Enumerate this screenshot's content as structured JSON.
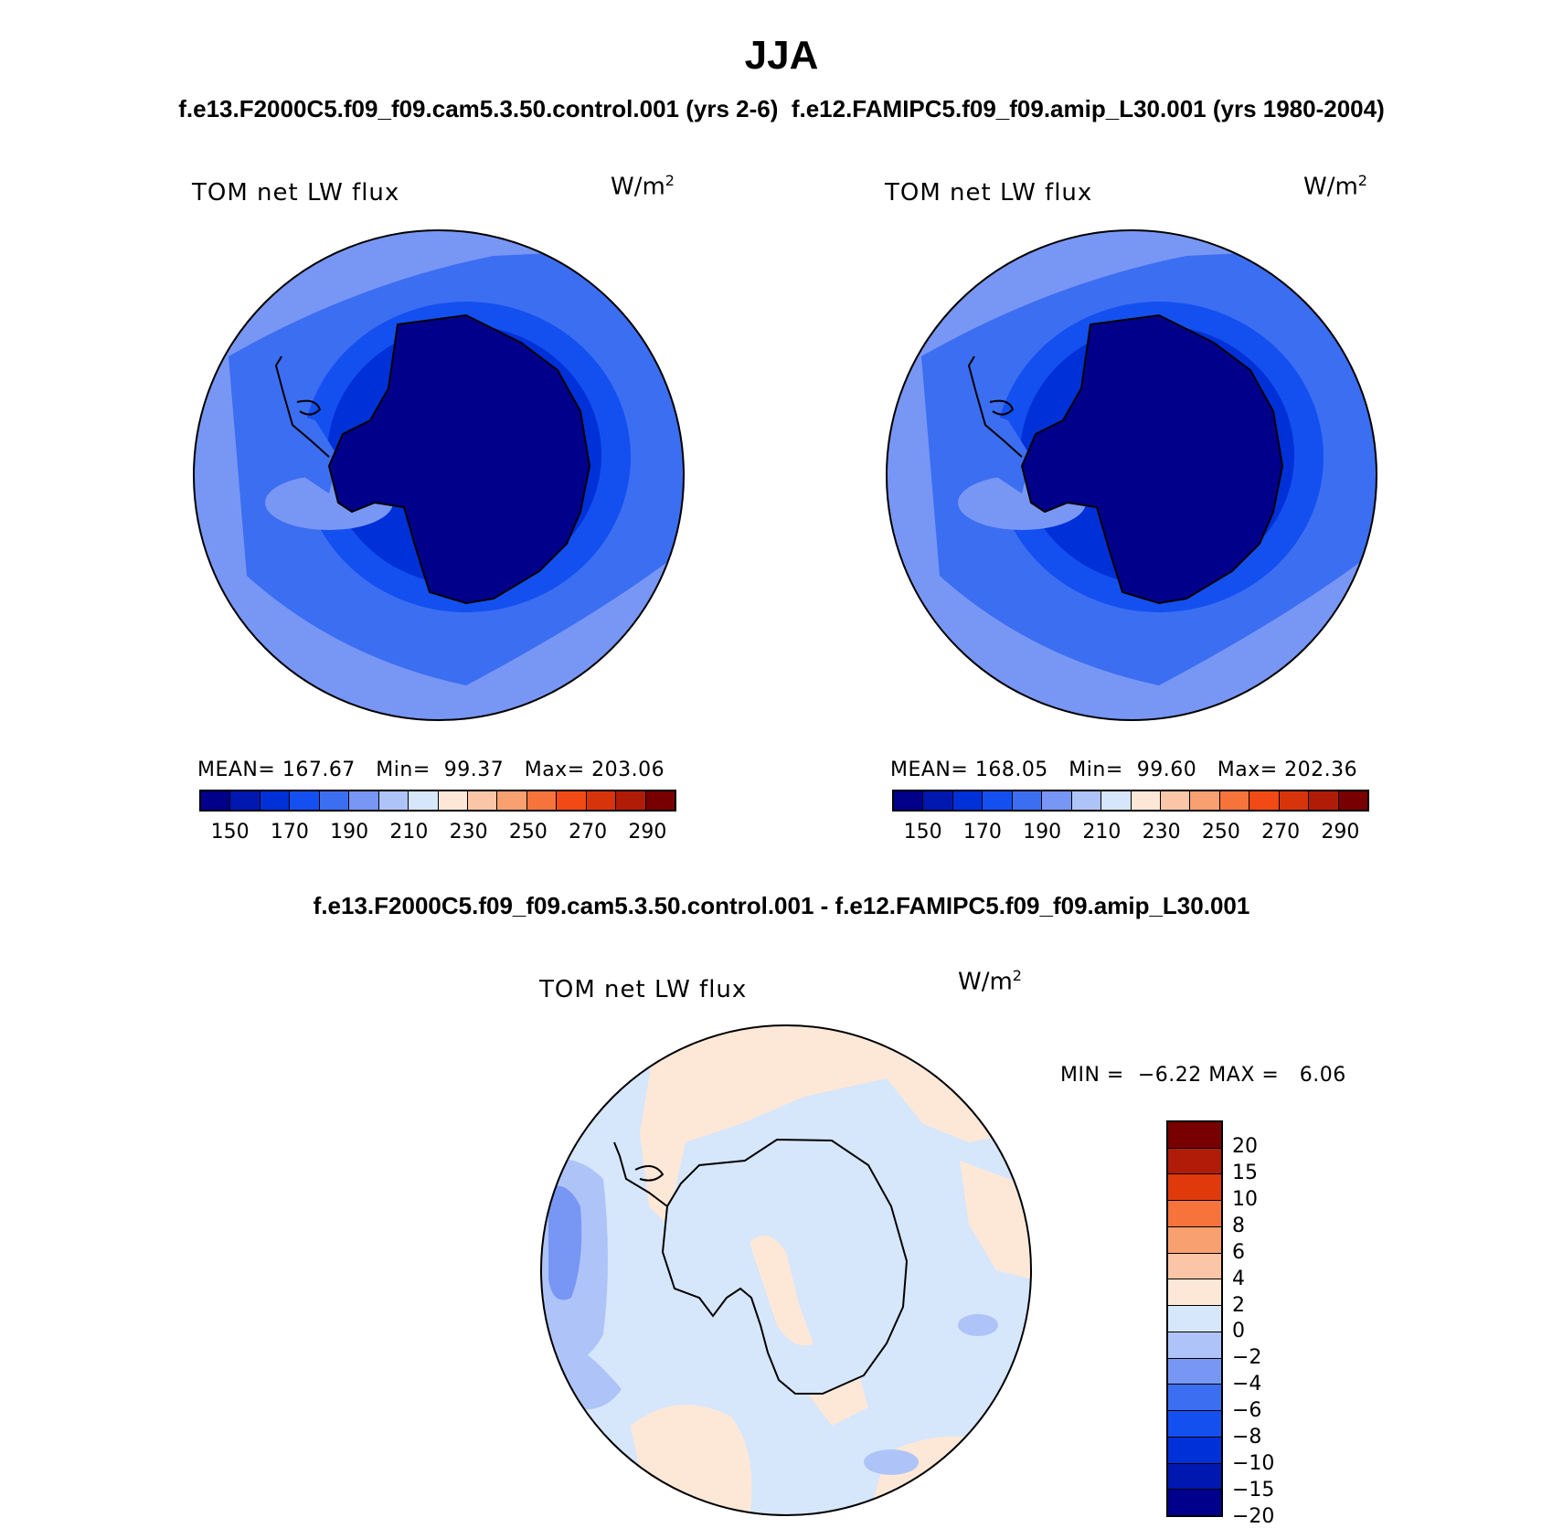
{
  "title": "JJA",
  "subtitle": "f.e13.F2000C5.f09_f09.cam5.3.50.control.001 (yrs 2-6)  f.e12.FAMIPC5.f09_f09.amip_L30.001 (yrs 1980-2004)",
  "diff_title": "f.e13.F2000C5.f09_f09.cam5.3.50.control.001 - f.e12.FAMIPC5.f09_f09.amip_L30.001",
  "panels": [
    {
      "label": "TOM net LW flux",
      "units": "W/m",
      "units_sup": "2",
      "mean_label": "MEAN=",
      "mean": "167.67",
      "min_label": "Min=",
      "min": "99.37",
      "max_label": "Max=",
      "max": "203.06"
    },
    {
      "label": "TOM net LW flux",
      "units": "W/m",
      "units_sup": "2",
      "mean_label": "MEAN=",
      "mean": "168.05",
      "min_label": "Min=",
      "min": "99.60",
      "max_label": "Max=",
      "max": "202.36"
    }
  ],
  "diff_panel": {
    "label": "TOM net LW flux",
    "units": "W/m",
    "units_sup": "2",
    "min_label": "MIN =",
    "min": "−6.22",
    "max_label": "MAX =",
    "max": "6.06"
  },
  "abs_colorbar": {
    "colors": [
      "#00008b",
      "#0018b0",
      "#0030d8",
      "#1450f0",
      "#3c6ef2",
      "#7896f4",
      "#aec4f8",
      "#d6e6fb",
      "#fde8d8",
      "#fbc6a8",
      "#f8a070",
      "#f6733c",
      "#f24a14",
      "#d8340c",
      "#b01c08",
      "#780000"
    ],
    "ticks": [
      "150",
      "170",
      "190",
      "210",
      "230",
      "250",
      "270",
      "290"
    ]
  },
  "diff_colorbar": {
    "colors": [
      "#780000",
      "#b01c08",
      "#e03a0c",
      "#f6733c",
      "#f8a070",
      "#fbc6a8",
      "#fde8d8",
      "#d6e6fb",
      "#aec4f8",
      "#7896f4",
      "#3c6ef2",
      "#1450f0",
      "#0030d8",
      "#0018b0",
      "#00008b"
    ],
    "ticks": [
      "20",
      "15",
      "10",
      "8",
      "6",
      "4",
      "2",
      "0",
      "−2",
      "−4",
      "−6",
      "−8",
      "−10",
      "−15",
      "−20"
    ]
  }
}
